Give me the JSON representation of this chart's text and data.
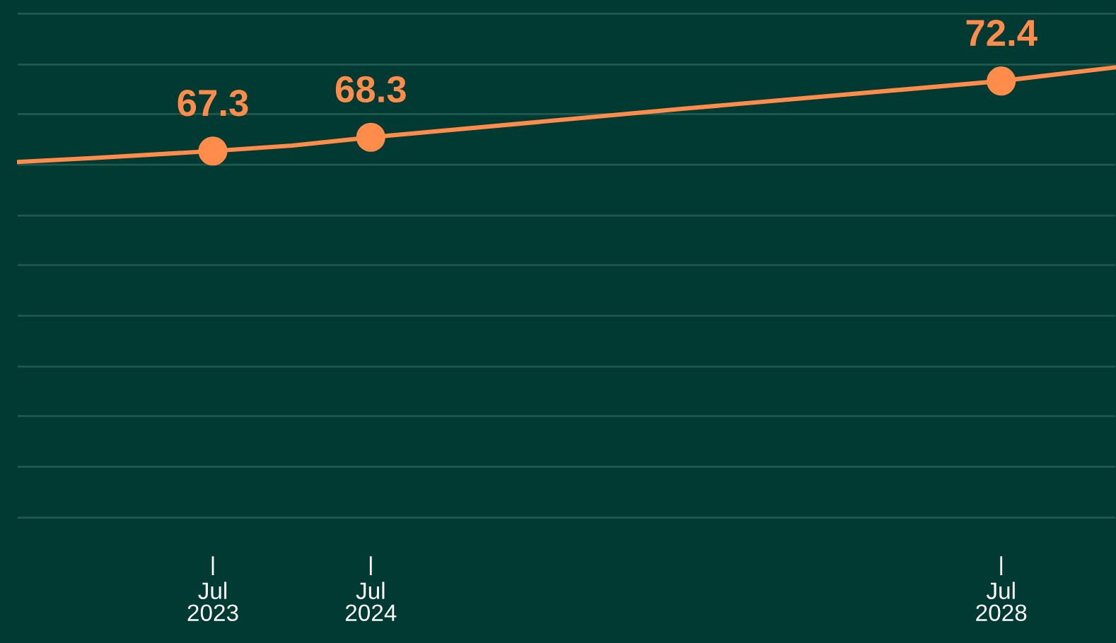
{
  "chart_data": {
    "type": "line",
    "xlim": [
      "2022-04-03",
      "2029-03-24"
    ],
    "xticks": [
      {
        "value": "2023-07-01",
        "label": "Jul\n2023"
      },
      {
        "value": "2024-07-01",
        "label": "Jul\n2024"
      },
      {
        "value": "2028-07-01",
        "label": "Jul\n2028"
      }
    ],
    "ylim": [
      39.5,
      78.3
    ],
    "yticks": [
      {
        "value": 40.6,
        "label": null
      },
      {
        "value": 44.3,
        "label": null
      },
      {
        "value": 48.0,
        "label": null
      },
      {
        "value": 51.6,
        "label": null
      },
      {
        "value": 55.3,
        "label": null
      },
      {
        "value": 59.0,
        "label": null
      },
      {
        "value": 62.6,
        "label": null
      },
      {
        "value": 66.3,
        "label": null
      },
      {
        "value": 70.0,
        "label": null
      },
      {
        "value": 73.6,
        "label": null
      },
      {
        "value": 77.3,
        "label": null
      }
    ],
    "tick_labels": "x",
    "grid": "y",
    "line_style": "solid",
    "series": [
      {
        "color": "#ff8c4a",
        "x": [
          "2022-04-03",
          "2022-10-01",
          "2023-07-01",
          "2024-01-01",
          "2024-07-01",
          "2026-07-01",
          "2028-07-01",
          "2029-03-24"
        ],
        "values": [
          66.5,
          66.8,
          67.3,
          67.7,
          68.3,
          70.4,
          72.4,
          73.4
        ]
      },
      {
        "type": "scatter",
        "color": "#ff8c4a",
        "marker": "circle",
        "x": [
          "2023-07-01",
          "2024-07-01",
          "2028-07-01"
        ],
        "values": [
          67.3,
          68.3,
          72.4
        ],
        "value_labels": [
          "67.3",
          "68.3",
          "72.4"
        ]
      }
    ]
  }
}
